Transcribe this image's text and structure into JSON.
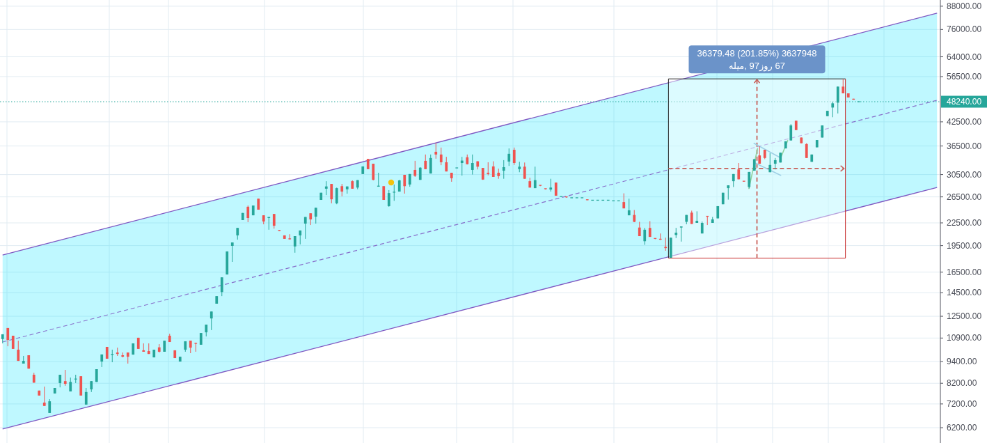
{
  "chart_data": {
    "type": "candlestick",
    "categories": [
      null,
      null,
      null,
      null,
      null,
      null,
      null,
      null,
      null,
      null,
      null,
      null,
      null,
      null,
      null,
      null,
      null,
      null,
      null,
      null,
      null,
      null,
      null,
      null,
      null,
      null,
      null,
      null,
      null,
      null,
      null,
      null,
      null,
      null,
      null,
      null,
      null,
      null,
      null,
      null,
      null,
      null,
      null,
      null,
      null,
      null,
      null,
      null,
      null,
      null,
      null,
      null,
      null,
      null,
      null,
      null,
      null,
      null,
      null,
      null,
      null,
      null,
      null,
      null,
      null,
      null,
      null,
      null,
      null,
      null,
      null,
      null,
      null,
      null,
      null,
      null,
      null,
      null,
      null,
      null,
      null,
      null,
      null,
      null,
      null,
      null,
      null,
      null,
      null,
      null,
      null,
      null,
      null,
      null,
      null,
      null,
      null,
      null,
      null,
      null,
      null,
      null,
      null,
      null,
      null,
      null,
      null,
      null,
      null,
      null,
      null,
      null,
      null,
      null,
      null,
      null,
      null,
      null,
      null,
      null,
      null,
      null,
      null,
      null,
      null,
      null,
      null,
      null,
      null,
      null,
      null,
      null,
      null,
      null,
      null,
      null,
      null,
      null,
      null,
      null,
      null,
      null,
      null,
      null,
      null,
      null,
      null,
      null,
      null,
      null,
      null,
      null,
      null,
      null,
      null,
      null,
      null,
      null,
      null,
      null,
      null,
      null,
      null,
      null,
      null,
      null,
      null,
      null,
      null,
      null,
      null,
      null,
      null,
      null,
      null,
      null,
      null,
      null,
      null,
      null
    ],
    "ohlc": [
      [
        10830,
        11160,
        10540,
        11160
      ],
      [
        11610,
        11610,
        10350,
        10770
      ],
      [
        11060,
        11060,
        10180,
        10180
      ],
      [
        10130,
        10720,
        9440,
        9440
      ],
      [
        9280,
        9740,
        9280,
        9440
      ],
      [
        9780,
        9780,
        8990,
        8990
      ],
      [
        8650,
        8760,
        8230,
        8230
      ],
      [
        7830,
        7830,
        7590,
        7590
      ],
      [
        7260,
        8030,
        7110,
        7110
      ],
      [
        6800,
        7420,
        6800,
        7320
      ],
      [
        7690,
        7960,
        7690,
        7960
      ],
      [
        8210,
        8650,
        7990,
        8650
      ],
      [
        8310,
        8920,
        8070,
        8170
      ],
      [
        7790,
        8500,
        7790,
        8270
      ],
      [
        8400,
        8650,
        8210,
        8420
      ],
      [
        8570,
        8570,
        7590,
        7590
      ],
      [
        7170,
        7960,
        7170,
        7760
      ],
      [
        7890,
        8310,
        7760,
        8310
      ],
      [
        8270,
        8960,
        8270,
        8960
      ],
      [
        9400,
        9830,
        9080,
        9830
      ],
      [
        10310,
        10310,
        9570,
        9570
      ],
      [
        9800,
        10130,
        9360,
        9860
      ],
      [
        9950,
        10260,
        9740,
        9860
      ],
      [
        9780,
        9950,
        9650,
        9690
      ],
      [
        9950,
        9950,
        9280,
        9690
      ],
      [
        9820,
        10540,
        9820,
        10540
      ],
      [
        10920,
        10920,
        10180,
        10180
      ],
      [
        10090,
        10540,
        10000,
        10000
      ],
      [
        10040,
        10540,
        9860,
        9860
      ],
      [
        9650,
        10130,
        9650,
        10130
      ],
      [
        10280,
        10490,
        9950,
        10000
      ],
      [
        10000,
        10720,
        10000,
        10720
      ],
      [
        11060,
        11200,
        10630,
        10630
      ],
      [
        10090,
        10090,
        9610,
        9610
      ],
      [
        9400,
        9690,
        9400,
        9690
      ],
      [
        10130,
        10680,
        10000,
        10680
      ],
      [
        10720,
        10720,
        9910,
        10260
      ],
      [
        10540,
        10590,
        10000,
        10490
      ],
      [
        10450,
        11250,
        10450,
        11250
      ],
      [
        11300,
        11860,
        11010,
        11860
      ],
      [
        12330,
        12880,
        11460,
        12880
      ],
      [
        13530,
        14190,
        13530,
        14190
      ],
      [
        14560,
        15970,
        14190,
        15970
      ],
      [
        16260,
        18800,
        16260,
        18800
      ],
      [
        19470,
        19890,
        17600,
        19890
      ],
      [
        20800,
        21800,
        20250,
        21800
      ],
      [
        22900,
        23950,
        22900,
        23950
      ],
      [
        24900,
        25100,
        22600,
        23200
      ],
      [
        23600,
        25100,
        23600,
        25100
      ],
      [
        26200,
        26200,
        24450,
        24450
      ],
      [
        23600,
        23600,
        22300,
        22700
      ],
      [
        23200,
        23350,
        21550,
        23350
      ],
      [
        23800,
        23800,
        21700,
        22100
      ],
      [
        21450,
        21450,
        21350,
        21350
      ],
      [
        20800,
        20800,
        20350,
        20350
      ],
      [
        20350,
        20950,
        20250,
        20250
      ],
      [
        19400,
        20700,
        18650,
        20700
      ],
      [
        20800,
        21450,
        19650,
        21450
      ],
      [
        22400,
        23350,
        20350,
        23350
      ],
      [
        23900,
        23900,
        22200,
        23000
      ],
      [
        23400,
        24750,
        22400,
        24750
      ],
      [
        26000,
        27200,
        26000,
        27200
      ],
      [
        27900,
        29250,
        26800,
        28300
      ],
      [
        28750,
        28750,
        25450,
        26100
      ],
      [
        25450,
        28100,
        25300,
        28000
      ],
      [
        28350,
        28750,
        26600,
        27400
      ],
      [
        27800,
        28300,
        27050,
        28300
      ],
      [
        29250,
        29400,
        27900,
        27900
      ],
      [
        28100,
        29450,
        27800,
        29450
      ],
      [
        30600,
        32100,
        30600,
        32100
      ],
      [
        33650,
        33650,
        31550,
        31550
      ],
      [
        32650,
        32650,
        29400,
        29500
      ],
      [
        28250,
        30850,
        28250,
        28350
      ],
      [
        28350,
        28350,
        26000,
        26000
      ],
      [
        25000,
        27650,
        24900,
        27150
      ],
      [
        27150,
        28650,
        25850,
        27300
      ],
      [
        27400,
        29500,
        27400,
        29400
      ],
      [
        30450,
        30450,
        27050,
        28350
      ],
      [
        28650,
        30600,
        28250,
        30600
      ],
      [
        31400,
        33250,
        30050,
        30250
      ],
      [
        29500,
        31950,
        29500,
        31850
      ],
      [
        33250,
        34600,
        31550,
        31550
      ],
      [
        30700,
        34600,
        30700,
        33850
      ],
      [
        35200,
        37250,
        33700,
        34600
      ],
      [
        34600,
        36150,
        32350,
        32950
      ],
      [
        32950,
        34100,
        31100,
        31100
      ],
      [
        30850,
        30850,
        29150,
        29800
      ],
      [
        31800,
        31800,
        31800,
        31800
      ],
      [
        32800,
        34100,
        30300,
        33300
      ],
      [
        34000,
        34600,
        32500,
        32550
      ],
      [
        31400,
        34600,
        30500,
        32800
      ],
      [
        33150,
        33150,
        31500,
        32050
      ],
      [
        31800,
        31800,
        29500,
        29550
      ],
      [
        30850,
        32950,
        30350,
        30600
      ],
      [
        32100,
        33150,
        30050,
        30050
      ],
      [
        30850,
        31650,
        29700,
        30200
      ],
      [
        31250,
        33400,
        29700,
        31950
      ],
      [
        33100,
        35950,
        32200,
        34750
      ],
      [
        35650,
        36150,
        32400,
        32800
      ],
      [
        31550,
        33050,
        30950,
        32050
      ],
      [
        32050,
        32900,
        29700,
        29700
      ],
      [
        29250,
        29900,
        28100,
        28100
      ],
      [
        28000,
        32050,
        28000,
        29450
      ],
      [
        28500,
        28500,
        28350,
        28350
      ],
      [
        27900,
        27900,
        27750,
        27750
      ],
      [
        27750,
        29700,
        27400,
        28100
      ],
      [
        29000,
        29000,
        26700,
        26700
      ],
      [
        26550,
        26550,
        26550,
        26550
      ],
      [
        26500,
        26500,
        26350,
        26350
      ],
      [
        26350,
        26350,
        26350,
        26350
      ],
      [
        26350,
        26350,
        26350,
        26350
      ],
      [
        26350,
        26350,
        26350,
        26350
      ],
      [
        26100,
        26100,
        25950,
        25950
      ],
      [
        25950,
        25950,
        25950,
        25950
      ],
      [
        25950,
        25950,
        25950,
        25950
      ],
      [
        25950,
        25950,
        25950,
        25950
      ],
      [
        25950,
        25950,
        25950,
        25950
      ],
      [
        25850,
        25850,
        25850,
        25850
      ],
      [
        25850,
        25850,
        25850,
        25850
      ],
      [
        25650,
        27100,
        24650,
        24650
      ],
      [
        23600,
        26200,
        23600,
        24350
      ],
      [
        23650,
        24400,
        22600,
        22650
      ],
      [
        21850,
        22650,
        20700,
        20700
      ],
      [
        20050,
        21800,
        19600,
        21550
      ],
      [
        21800,
        22750,
        20600,
        20600
      ],
      [
        20400,
        20400,
        20300,
        20300
      ],
      [
        20300,
        21050,
        20200,
        20200
      ],
      [
        19350,
        20500,
        18880,
        19200
      ],
      [
        18070,
        20500,
        18020,
        20500
      ],
      [
        20850,
        21800,
        20450,
        21150
      ],
      [
        21850,
        22000,
        20000,
        22000
      ],
      [
        22650,
        23650,
        22300,
        23650
      ],
      [
        24000,
        24300,
        22350,
        22350
      ],
      [
        22500,
        24200,
        22500,
        22800
      ],
      [
        21050,
        22700,
        21050,
        22500
      ],
      [
        23450,
        23450,
        22200,
        23350
      ],
      [
        22500,
        23350,
        22500,
        23000
      ],
      [
        23150,
        25000,
        23150,
        25000
      ],
      [
        25300,
        27200,
        25300,
        27200
      ],
      [
        28000,
        28500,
        26050,
        28500
      ],
      [
        29250,
        30600,
        28200,
        30600
      ],
      [
        31500,
        32800,
        29600,
        29600
      ],
      [
        29250,
        29250,
        29150,
        29150
      ],
      [
        28200,
        31000,
        27950,
        31000
      ],
      [
        31250,
        33600,
        31250,
        33600
      ],
      [
        34400,
        36450,
        32650,
        32650
      ],
      [
        35650,
        35650,
        33600,
        33850
      ],
      [
        30950,
        34900,
        30950,
        32400
      ],
      [
        32650,
        33850,
        31500,
        33400
      ],
      [
        32900,
        35000,
        32900,
        35000
      ],
      [
        35950,
        37600,
        35950,
        37600
      ],
      [
        37800,
        41900,
        37800,
        41550
      ],
      [
        42800,
        42800,
        40350,
        40350
      ],
      [
        38500,
        38500,
        37150,
        37150
      ],
      [
        36950,
        37150,
        33850,
        33850
      ],
      [
        33050,
        34600,
        33050,
        34600
      ],
      [
        36200,
        37900,
        36200,
        37900
      ],
      [
        38500,
        41550,
        38500,
        41550
      ],
      [
        44050,
        45550,
        44050,
        45550
      ],
      [
        46500,
        48250,
        43750,
        47750
      ],
      [
        47950,
        53050,
        44800,
        53050
      ],
      [
        53050,
        55700,
        50850,
        50850
      ],
      [
        50850,
        50850,
        49550,
        49550
      ],
      [
        49150,
        49150,
        48850,
        48850
      ],
      [
        48240,
        48240,
        48240,
        48240
      ],
      null,
      null,
      null,
      null,
      null,
      null,
      null,
      null,
      null,
      null,
      null,
      null,
      null,
      null,
      null
    ],
    "series": [
      {
        "type": "line",
        "color": "#7e57c2",
        "line_style": "dashed",
        "values": [
          10630,
          null,
          null,
          null,
          null,
          null,
          null,
          null,
          null,
          null,
          null,
          null,
          null,
          null,
          null,
          null,
          null,
          null,
          null,
          null,
          null,
          null,
          null,
          null,
          null,
          null,
          null,
          null,
          null,
          null,
          null,
          null,
          null,
          null,
          null,
          null,
          null,
          null,
          null,
          null,
          null,
          null,
          null,
          null,
          null,
          null,
          null,
          null,
          null,
          null,
          null,
          null,
          null,
          null,
          null,
          null,
          null,
          null,
          null,
          null,
          null,
          null,
          null,
          null,
          null,
          null,
          null,
          null,
          null,
          null,
          null,
          null,
          null,
          null,
          null,
          null,
          null,
          null,
          null,
          null,
          null,
          null,
          null,
          null,
          null,
          null,
          null,
          null,
          null,
          null,
          null,
          null,
          null,
          null,
          null,
          null,
          null,
          null,
          null,
          null,
          null,
          null,
          null,
          null,
          null,
          null,
          null,
          null,
          null,
          null,
          null,
          null,
          null,
          null,
          null,
          null,
          null,
          null,
          null,
          null,
          null,
          null,
          null,
          null,
          null,
          null,
          null,
          null,
          null,
          null,
          null,
          null,
          null,
          null,
          null,
          null,
          null,
          null,
          null,
          null,
          null,
          null,
          null,
          null,
          null,
          null,
          null,
          null,
          null,
          null,
          null,
          null,
          null,
          null,
          null,
          null,
          null,
          null,
          null,
          null,
          null,
          null,
          null,
          null,
          null,
          null,
          null,
          null,
          null,
          null,
          null,
          null,
          null,
          null,
          null,
          null,
          null,
          null,
          null,
          48670
        ],
        "lower": [
          6150,
          null,
          null,
          null,
          null,
          null,
          null,
          null,
          null,
          null,
          null,
          null,
          null,
          null,
          null,
          null,
          null,
          null,
          null,
          null,
          null,
          null,
          null,
          null,
          null,
          null,
          null,
          null,
          null,
          null,
          null,
          null,
          null,
          null,
          null,
          null,
          null,
          null,
          null,
          null,
          null,
          null,
          null,
          null,
          null,
          null,
          null,
          null,
          null,
          null,
          null,
          null,
          null,
          null,
          null,
          null,
          null,
          null,
          null,
          null,
          null,
          null,
          null,
          null,
          null,
          null,
          null,
          null,
          null,
          null,
          null,
          null,
          null,
          null,
          null,
          null,
          null,
          null,
          null,
          null,
          null,
          null,
          null,
          null,
          null,
          null,
          null,
          null,
          null,
          null,
          null,
          null,
          null,
          null,
          null,
          null,
          null,
          null,
          null,
          null,
          null,
          null,
          null,
          null,
          null,
          null,
          null,
          null,
          null,
          null,
          null,
          null,
          null,
          null,
          null,
          null,
          null,
          null,
          null,
          null,
          null,
          null,
          null,
          null,
          null,
          null,
          null,
          null,
          null,
          null,
          null,
          null,
          null,
          null,
          null,
          null,
          null,
          null,
          null,
          null,
          null,
          null,
          null,
          null,
          null,
          null,
          null,
          null,
          null,
          null,
          null,
          null,
          null,
          null,
          null,
          null,
          null,
          null,
          null,
          null,
          null,
          null,
          null,
          null,
          null,
          null,
          null,
          null,
          null,
          null,
          null,
          null,
          null,
          null,
          null,
          null,
          null,
          null,
          null,
          28130
        ],
        "upper": [
          18380,
          null,
          null,
          null,
          null,
          null,
          null,
          null,
          null,
          null,
          null,
          null,
          null,
          null,
          null,
          null,
          null,
          null,
          null,
          null,
          null,
          null,
          null,
          null,
          null,
          null,
          null,
          null,
          null,
          null,
          null,
          null,
          null,
          null,
          null,
          null,
          null,
          null,
          null,
          null,
          null,
          null,
          null,
          null,
          null,
          null,
          null,
          null,
          null,
          null,
          null,
          null,
          null,
          null,
          null,
          null,
          null,
          null,
          null,
          null,
          null,
          null,
          null,
          null,
          null,
          null,
          null,
          null,
          null,
          null,
          null,
          null,
          null,
          null,
          null,
          null,
          null,
          null,
          null,
          null,
          null,
          null,
          null,
          null,
          null,
          null,
          null,
          null,
          null,
          null,
          null,
          null,
          null,
          null,
          null,
          null,
          null,
          null,
          null,
          null,
          null,
          null,
          null,
          null,
          null,
          null,
          null,
          null,
          null,
          null,
          null,
          null,
          null,
          null,
          null,
          null,
          null,
          null,
          null,
          null,
          null,
          null,
          null,
          null,
          null,
          null,
          null,
          null,
          null,
          null,
          null,
          null,
          null,
          null,
          null,
          null,
          null,
          null,
          null,
          null,
          null,
          null,
          null,
          null,
          null,
          null,
          null,
          null,
          null,
          null,
          null,
          null,
          null,
          null,
          null,
          null,
          null,
          null,
          null,
          null,
          null,
          null,
          null,
          null,
          null,
          null,
          null,
          null,
          null,
          null,
          null,
          null,
          null,
          null,
          null,
          null,
          null,
          null,
          null,
          84200
        ]
      },
      {
        "type": "line",
        "color": "#7e57c2",
        "line_style": "solid",
        "values": [
          18380,
          null,
          null,
          null,
          null,
          null,
          null,
          null,
          null,
          null,
          null,
          null,
          null,
          null,
          null,
          null,
          null,
          null,
          null,
          null,
          null,
          null,
          null,
          null,
          null,
          null,
          null,
          null,
          null,
          null,
          null,
          null,
          null,
          null,
          null,
          null,
          null,
          null,
          null,
          null,
          null,
          null,
          null,
          null,
          null,
          null,
          null,
          null,
          null,
          null,
          null,
          null,
          null,
          null,
          null,
          null,
          null,
          null,
          null,
          null,
          null,
          null,
          null,
          null,
          null,
          null,
          null,
          null,
          null,
          null,
          null,
          null,
          null,
          null,
          null,
          null,
          null,
          null,
          null,
          null,
          null,
          null,
          null,
          null,
          null,
          null,
          null,
          null,
          null,
          null,
          null,
          null,
          null,
          null,
          null,
          null,
          null,
          null,
          null,
          null,
          null,
          null,
          null,
          null,
          null,
          null,
          null,
          null,
          null,
          null,
          null,
          null,
          null,
          null,
          null,
          null,
          null,
          null,
          null,
          null,
          null,
          null,
          null,
          null,
          null,
          null,
          null,
          null,
          null,
          null,
          null,
          null,
          null,
          null,
          null,
          null,
          null,
          null,
          null,
          null,
          null,
          null,
          null,
          null,
          null,
          null,
          null,
          null,
          null,
          null,
          null,
          null,
          null,
          null,
          null,
          null,
          null,
          null,
          null,
          null,
          null,
          null,
          null,
          null,
          null,
          null,
          null,
          null,
          null,
          null,
          null,
          null,
          null,
          null,
          null,
          null,
          null,
          null,
          null,
          84200
        ]
      },
      {
        "type": "line",
        "color": "#7e57c2",
        "line_style": "solid",
        "values": [
          6150,
          null,
          null,
          null,
          null,
          null,
          null,
          null,
          null,
          null,
          null,
          null,
          null,
          null,
          null,
          null,
          null,
          null,
          null,
          null,
          null,
          null,
          null,
          null,
          null,
          null,
          null,
          null,
          null,
          null,
          null,
          null,
          null,
          null,
          null,
          null,
          null,
          null,
          null,
          null,
          null,
          null,
          null,
          null,
          null,
          null,
          null,
          null,
          null,
          null,
          null,
          null,
          null,
          null,
          null,
          null,
          null,
          null,
          null,
          null,
          null,
          null,
          null,
          null,
          null,
          null,
          null,
          null,
          null,
          null,
          null,
          null,
          null,
          null,
          null,
          null,
          null,
          null,
          null,
          null,
          null,
          null,
          null,
          null,
          null,
          null,
          null,
          null,
          null,
          null,
          null,
          null,
          null,
          null,
          null,
          null,
          null,
          null,
          null,
          null,
          null,
          null,
          null,
          null,
          null,
          null,
          null,
          null,
          null,
          null,
          null,
          null,
          null,
          null,
          null,
          null,
          null,
          null,
          null,
          null,
          null,
          null,
          null,
          null,
          null,
          null,
          null,
          null,
          null,
          null,
          null,
          null,
          null,
          null,
          null,
          null,
          null,
          null,
          null,
          null,
          null,
          null,
          null,
          null,
          null,
          null,
          null,
          null,
          null,
          null,
          null,
          null,
          null,
          null,
          null,
          null,
          null,
          null,
          null,
          null,
          null,
          null,
          null,
          null,
          null,
          null,
          null,
          null,
          null,
          null,
          null,
          null,
          null,
          null,
          null,
          null,
          null,
          null,
          null,
          28130
        ]
      }
    ],
    "ylim": [
      5630,
      91500
    ],
    "log": true,
    "yticks": [
      {
        "value": 6200,
        "label": "6200.00"
      },
      {
        "value": 7200,
        "label": "7200.00"
      },
      {
        "value": 8200,
        "label": "8200.00"
      },
      {
        "value": 9400,
        "label": "9400.00"
      },
      {
        "value": 10900,
        "label": "10900.00"
      },
      {
        "value": 12500,
        "label": "12500.00"
      },
      {
        "value": 14500,
        "label": "14500.00"
      },
      {
        "value": 16500,
        "label": "16500.00"
      },
      {
        "value": 19500,
        "label": "19500.00"
      },
      {
        "value": 22500,
        "label": "22500.00"
      },
      {
        "value": 26500,
        "label": "26500.00"
      },
      {
        "value": 30500,
        "label": "30500.00"
      },
      {
        "value": 36500,
        "label": "36500.00"
      },
      {
        "value": 42500,
        "label": "42500.00"
      },
      {
        "value": 56500,
        "label": "56500.00"
      },
      {
        "value": 64000,
        "label": "64000.00"
      },
      {
        "value": 76000,
        "label": "76000.00"
      },
      {
        "value": 88000,
        "label": "88000.00"
      }
    ],
    "grid": true,
    "tick_labels": "y",
    "ref_lines": [
      {
        "axis": "y",
        "value": 48240,
        "label": "48240.00",
        "color": "#26a69a",
        "line_style": "dotted"
      }
    ],
    "annotations": [
      "36379.48 (201.85%) 3637948",
      "67 روز97 ,میله"
    ]
  }
}
